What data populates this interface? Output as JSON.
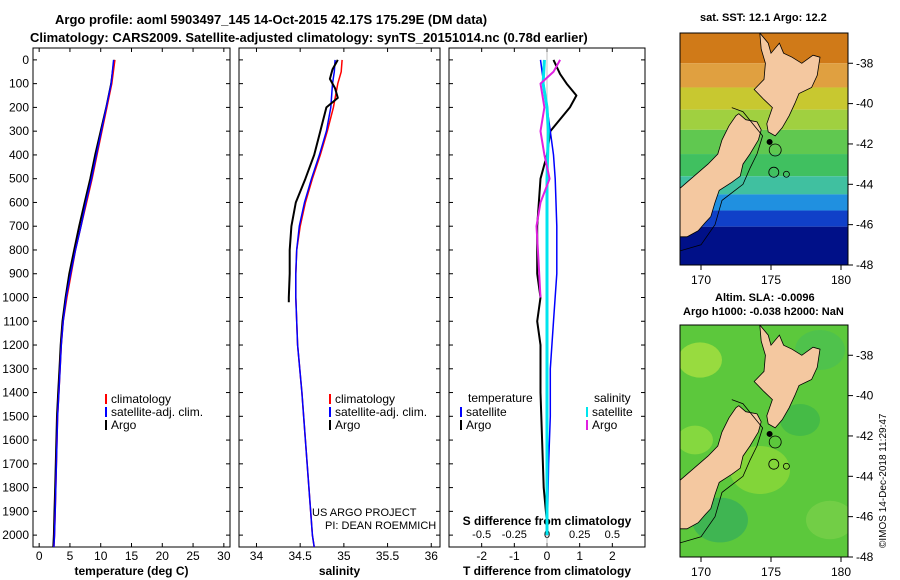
{
  "header": {
    "line1": "Argo profile: aoml 5903497_145 14-Oct-2015 42.17S 175.29E (DM data)",
    "line2": "Climatology: CARS2009. Satellite-adjusted climatology: synTS_20151014.nc (0.78d earlier)"
  },
  "map_top": {
    "title": "sat. SST: 12.1 Argo: 12.2"
  },
  "map_bottom": {
    "title1": "Altim. SLA: -0.0096",
    "title2": "Argo h1000: -0.038 h2000: NaN"
  },
  "credits": {
    "line1": "US ARGO PROJECT",
    "line2": "PI: DEAN ROEMMICH"
  },
  "stamp": "©IMOS 14-Dec-2018 11:29:47",
  "colors": {
    "climatology": "#ff0000",
    "satellite": "#0000ff",
    "argo": "#000000",
    "sal_satellite": "#00e5ee",
    "sal_argo": "#e020e0",
    "land": "#f4c8a0"
  },
  "chart_data": [
    {
      "type": "line",
      "title": "",
      "xlabel": "temperature (deg C)",
      "ylabel": "",
      "xlim": [
        -1,
        31
      ],
      "ylim": [
        2050,
        0
      ],
      "xticks": [
        "0",
        "5",
        "10",
        "15",
        "20",
        "25",
        "30"
      ],
      "yticks": [
        "0",
        "100",
        "200",
        "300",
        "400",
        "500",
        "600",
        "700",
        "800",
        "900",
        "1000",
        "1100",
        "1200",
        "1300",
        "1400",
        "1500",
        "1600",
        "1700",
        "1800",
        "1900",
        "2000"
      ],
      "legend": [
        "climatology",
        "satellite-adj. clim.",
        "Argo"
      ],
      "series": [
        {
          "name": "climatology",
          "depth": [
            0,
            100,
            200,
            300,
            400,
            500,
            600,
            700,
            800,
            900,
            1000,
            1100,
            1200,
            1300,
            1400,
            1500,
            1600,
            1700,
            1800,
            1900,
            2000,
            2050
          ],
          "values": [
            12.3,
            11.8,
            11.0,
            10.2,
            9.4,
            8.6,
            7.7,
            6.8,
            5.9,
            5.2,
            4.5,
            3.9,
            3.6,
            3.4,
            3.2,
            3.0,
            2.9,
            2.8,
            2.7,
            2.6,
            2.5,
            2.4
          ]
        },
        {
          "name": "satellite-adj. clim.",
          "depth": [
            0,
            100,
            200,
            300,
            400,
            500,
            600,
            700,
            800,
            900,
            1000,
            1100,
            1200,
            1300,
            1400,
            1500,
            1600,
            1700,
            1800,
            1900,
            2000,
            2050
          ],
          "values": [
            12.1,
            11.7,
            10.9,
            10.1,
            9.3,
            8.5,
            7.6,
            6.8,
            5.9,
            5.1,
            4.4,
            3.9,
            3.6,
            3.4,
            3.2,
            3.0,
            2.9,
            2.8,
            2.7,
            2.6,
            2.5,
            2.4
          ]
        },
        {
          "name": "Argo",
          "depth": [
            0,
            100,
            200,
            300,
            400,
            500,
            600,
            700,
            800,
            900,
            1000,
            1100,
            1200,
            1300,
            1400,
            1500,
            1600,
            1700,
            1800,
            1900,
            2000,
            2050
          ],
          "values": [
            12.2,
            11.7,
            10.9,
            10.0,
            9.1,
            8.3,
            7.4,
            6.5,
            5.7,
            4.9,
            4.3,
            3.8,
            3.5,
            3.3,
            3.1,
            2.9,
            2.8,
            2.7,
            2.6,
            2.5,
            2.4,
            2.3
          ]
        }
      ]
    },
    {
      "type": "line",
      "title": "",
      "xlabel": "salinity",
      "ylabel": "",
      "xlim": [
        33.8,
        36.1
      ],
      "ylim": [
        2050,
        0
      ],
      "xticks": [
        "34",
        "34.5",
        "35",
        "35.5",
        "36"
      ],
      "legend": [
        "climatology",
        "satellite-adj. clim.",
        "Argo"
      ],
      "series": [
        {
          "name": "climatology",
          "depth": [
            0,
            50,
            100,
            200,
            300,
            400,
            500,
            600,
            700,
            800,
            900,
            1000,
            1200,
            1400,
            1600,
            1800,
            2000,
            2050
          ],
          "values": [
            34.98,
            34.97,
            34.93,
            34.88,
            34.81,
            34.73,
            34.64,
            34.56,
            34.5,
            34.46,
            34.45,
            34.45,
            34.47,
            34.52,
            34.56,
            34.6,
            34.64,
            34.66
          ]
        },
        {
          "name": "satellite-adj. clim.",
          "depth": [
            0,
            50,
            100,
            200,
            300,
            400,
            500,
            600,
            700,
            800,
            900,
            1000,
            1200,
            1400,
            1600,
            1800,
            2000,
            2050
          ],
          "values": [
            34.9,
            34.89,
            34.87,
            34.85,
            34.8,
            34.72,
            34.63,
            34.55,
            34.49,
            34.46,
            34.45,
            34.45,
            34.47,
            34.52,
            34.56,
            34.6,
            34.64,
            34.66
          ]
        },
        {
          "name": "Argo",
          "depth": [
            0,
            40,
            80,
            120,
            160,
            200,
            300,
            400,
            500,
            600,
            700,
            800,
            900,
            1000,
            1020
          ],
          "values": [
            34.93,
            34.87,
            34.84,
            34.9,
            34.93,
            34.8,
            34.73,
            34.66,
            34.56,
            34.45,
            34.4,
            34.38,
            34.38,
            34.37,
            34.37
          ]
        }
      ]
    },
    {
      "type": "line",
      "title": "",
      "xlabel": "T difference from climatology",
      "xlabel2": "S difference from climatology",
      "ylabel": "",
      "xlim": [
        -3,
        3
      ],
      "ylim": [
        2050,
        0
      ],
      "xticks": [
        "-2",
        "-1",
        "0",
        "1",
        "2"
      ],
      "xticks2": [
        "-0.5",
        "-0.25",
        "0",
        "0.25",
        "0.5"
      ],
      "legend_left_title": "temperature",
      "legend_right_title": "salinity",
      "legend": [
        "satellite",
        "Argo",
        "satellite",
        "Argo"
      ],
      "series": [
        {
          "name": "T satellite",
          "depth": [
            0,
            100,
            200,
            300,
            400,
            500,
            700,
            900,
            1100,
            1300,
            1500,
            1700,
            1900,
            2000
          ],
          "values": [
            -0.2,
            -0.1,
            0.0,
            0.1,
            0.2,
            0.25,
            0.3,
            0.3,
            0.2,
            0.1,
            0.1,
            0.05,
            0.02,
            0.0
          ]
        },
        {
          "name": "T Argo",
          "depth": [
            0,
            60,
            100,
            150,
            200,
            300,
            400,
            500,
            700,
            900,
            1000,
            1100,
            1200,
            1400,
            1600,
            1800,
            1950
          ],
          "values": [
            0.2,
            0.4,
            0.6,
            0.9,
            0.7,
            0.1,
            0.0,
            -0.2,
            -0.3,
            -0.3,
            -0.2,
            -0.3,
            -0.2,
            -0.2,
            -0.15,
            -0.1,
            0.0
          ]
        },
        {
          "name": "S satellite",
          "depth": [
            0,
            100,
            200,
            300,
            500,
            700,
            900,
            1100,
            1300,
            1500,
            1700,
            1900,
            2000
          ],
          "values": [
            -0.02,
            -0.03,
            0.0,
            0.01,
            0.0,
            0.0,
            0.0,
            0.0,
            0.0,
            0.0,
            0.0,
            0.0,
            0.0
          ]
        },
        {
          "name": "S Argo",
          "depth": [
            0,
            50,
            100,
            200,
            300,
            400,
            500,
            600,
            700,
            800,
            900,
            1000
          ],
          "values": [
            0.1,
            0.05,
            -0.05,
            -0.02,
            -0.05,
            -0.02,
            0.02,
            -0.05,
            -0.08,
            -0.07,
            -0.06,
            -0.05
          ]
        }
      ]
    },
    {
      "type": "heatmap",
      "title": "sat. SST: 12.1 Argo: 12.2",
      "xticks": [
        "170",
        "175",
        "180"
      ],
      "yticks": [
        "-38",
        "-40",
        "-42",
        "-44",
        "-46",
        "-48"
      ],
      "xlim": [
        168.5,
        180.5
      ],
      "ylim": [
        -48,
        -36.5
      ]
    },
    {
      "type": "heatmap",
      "title": "Altim. SLA: -0.0096 / Argo h1000: -0.038 h2000: NaN",
      "xticks": [
        "170",
        "175",
        "180"
      ],
      "yticks": [
        "-38",
        "-40",
        "-42",
        "-44",
        "-46",
        "-48"
      ],
      "xlim": [
        168.5,
        180.5
      ],
      "ylim": [
        -48,
        -36.5
      ]
    }
  ]
}
